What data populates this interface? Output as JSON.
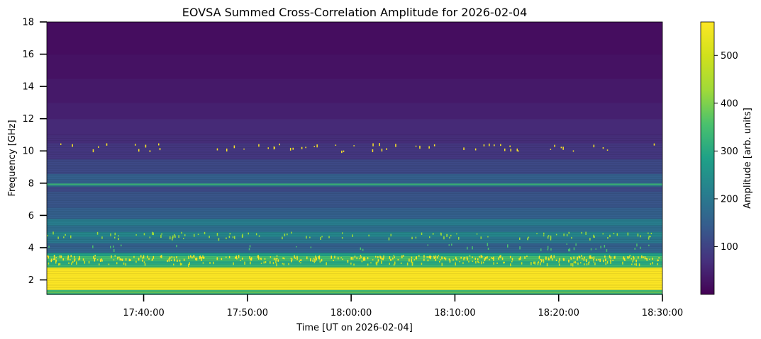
{
  "chart_data": {
    "type": "heatmap",
    "title": "EOVSA Summed Cross-Correlation Amplitude for 2026-02-04",
    "xlabel": "Time [UT on 2026-02-04]",
    "ylabel": "Frequency [GHz]",
    "colorbar_label": "Amplitude [arb. units]",
    "colormap": "viridis",
    "x_range": [
      "17:30:40",
      "18:30:00"
    ],
    "x_ticks": [
      "17:40:00",
      "17:50:00",
      "18:00:00",
      "18:10:00",
      "18:20:00",
      "18:30:00"
    ],
    "y_range": [
      1.1,
      18
    ],
    "y_ticks": [
      2,
      4,
      6,
      8,
      10,
      12,
      14,
      16,
      18
    ],
    "color_range": [
      0,
      570
    ],
    "color_ticks": [
      100,
      200,
      300,
      400,
      500
    ],
    "grid": false,
    "frequency_profile": [
      {
        "freq": 1.1,
        "amp": 300
      },
      {
        "freq": 1.2,
        "amp": 380
      },
      {
        "freq": 1.3,
        "amp": 330
      },
      {
        "freq": 1.4,
        "amp": 570
      },
      {
        "freq": 2.4,
        "amp": 570
      },
      {
        "freq": 2.7,
        "amp": 540
      },
      {
        "freq": 2.8,
        "amp": 330
      },
      {
        "freq": 3.0,
        "amp": 300
      },
      {
        "freq": 3.2,
        "amp": 350
      },
      {
        "freq": 3.5,
        "amp": 280
      },
      {
        "freq": 3.7,
        "amp": 160
      },
      {
        "freq": 4.0,
        "amp": 150
      },
      {
        "freq": 4.3,
        "amp": 200
      },
      {
        "freq": 4.7,
        "amp": 230
      },
      {
        "freq": 5.0,
        "amp": 180
      },
      {
        "freq": 5.4,
        "amp": 210
      },
      {
        "freq": 5.8,
        "amp": 150
      },
      {
        "freq": 6.5,
        "amp": 130
      },
      {
        "freq": 7.5,
        "amp": 110
      },
      {
        "freq": 7.8,
        "amp": 170
      },
      {
        "freq": 7.9,
        "amp": 330
      },
      {
        "freq": 8.0,
        "amp": 150
      },
      {
        "freq": 8.6,
        "amp": 110
      },
      {
        "freq": 9.5,
        "amp": 80
      },
      {
        "freq": 10.5,
        "amp": 65
      },
      {
        "freq": 11.0,
        "amp": 60
      },
      {
        "freq": 12.0,
        "amp": 45
      },
      {
        "freq": 13.0,
        "amp": 35
      },
      {
        "freq": 14.5,
        "amp": 25
      },
      {
        "freq": 16.0,
        "amp": 18
      },
      {
        "freq": 18.0,
        "amp": 10
      }
    ]
  }
}
